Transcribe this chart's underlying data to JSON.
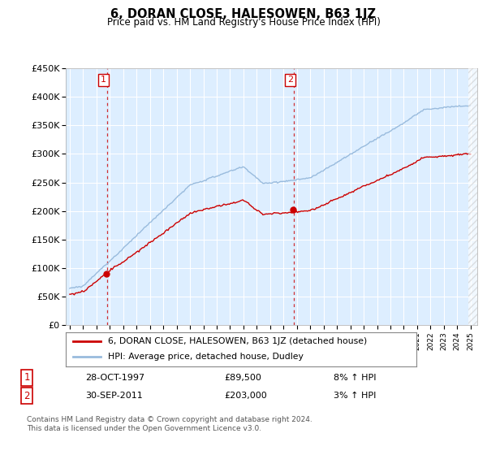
{
  "title": "6, DORAN CLOSE, HALESOWEN, B63 1JZ",
  "subtitle": "Price paid vs. HM Land Registry's House Price Index (HPI)",
  "ylim": [
    0,
    450000
  ],
  "yticks": [
    0,
    50000,
    100000,
    150000,
    200000,
    250000,
    300000,
    350000,
    400000,
    450000
  ],
  "yticklabels": [
    "£0",
    "£50K",
    "£100K",
    "£150K",
    "£200K",
    "£250K",
    "£300K",
    "£350K",
    "£400K",
    "£450K"
  ],
  "sale1_date": "28-OCT-1997",
  "sale1_price": 89500,
  "sale1_label": "8% ↑ HPI",
  "sale1_year": 1997.79,
  "sale2_date": "30-SEP-2011",
  "sale2_price": 203000,
  "sale2_label": "3% ↑ HPI",
  "sale2_year": 2011.75,
  "legend_property": "6, DORAN CLOSE, HALESOWEN, B63 1JZ (detached house)",
  "legend_hpi": "HPI: Average price, detached house, Dudley",
  "footer": "Contains HM Land Registry data © Crown copyright and database right 2024.\nThis data is licensed under the Open Government Licence v3.0.",
  "property_color": "#cc0000",
  "hpi_color": "#99bbdd",
  "bg_color": "#ddeeff",
  "xlim_start": 1994.7,
  "xlim_end": 2025.5
}
